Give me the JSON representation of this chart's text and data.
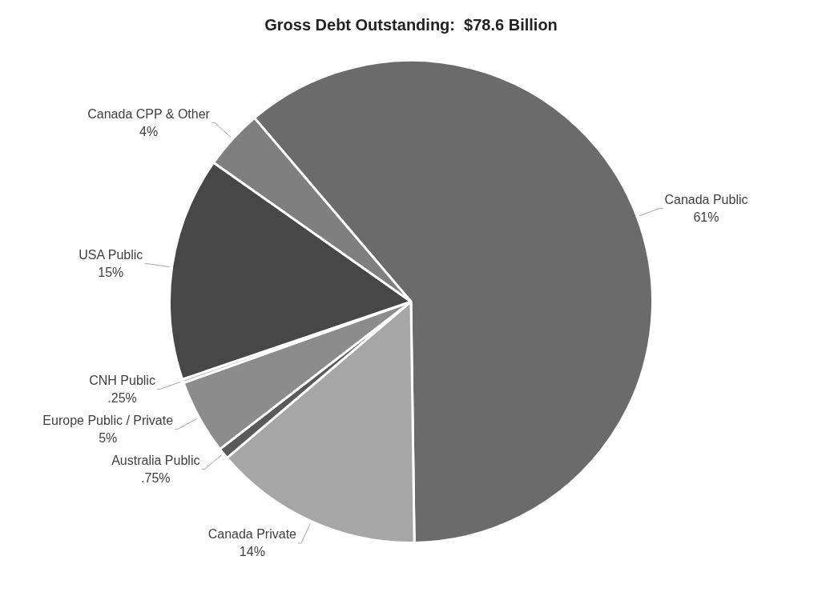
{
  "chart_data": {
    "type": "pie",
    "title": "Gross Debt Outstanding:  $78.6 Billion",
    "categories": [
      "Canada Public",
      "Canada Private",
      "Australia Public",
      "Europe Public / Private",
      "CNH Public",
      "USA Public",
      "Canada CPP & Other"
    ],
    "values": [
      61,
      14,
      0.75,
      5,
      0.25,
      15,
      4
    ],
    "value_labels": [
      "61%",
      "14%",
      ".75%",
      "5%",
      ".25%",
      "15%",
      "4%"
    ],
    "colors": [
      "#6b6b6b",
      "#a6a6a6",
      "#5a5a5a",
      "#8c8c8c",
      "#c8c8c8",
      "#474747",
      "#7f7f7f"
    ]
  }
}
